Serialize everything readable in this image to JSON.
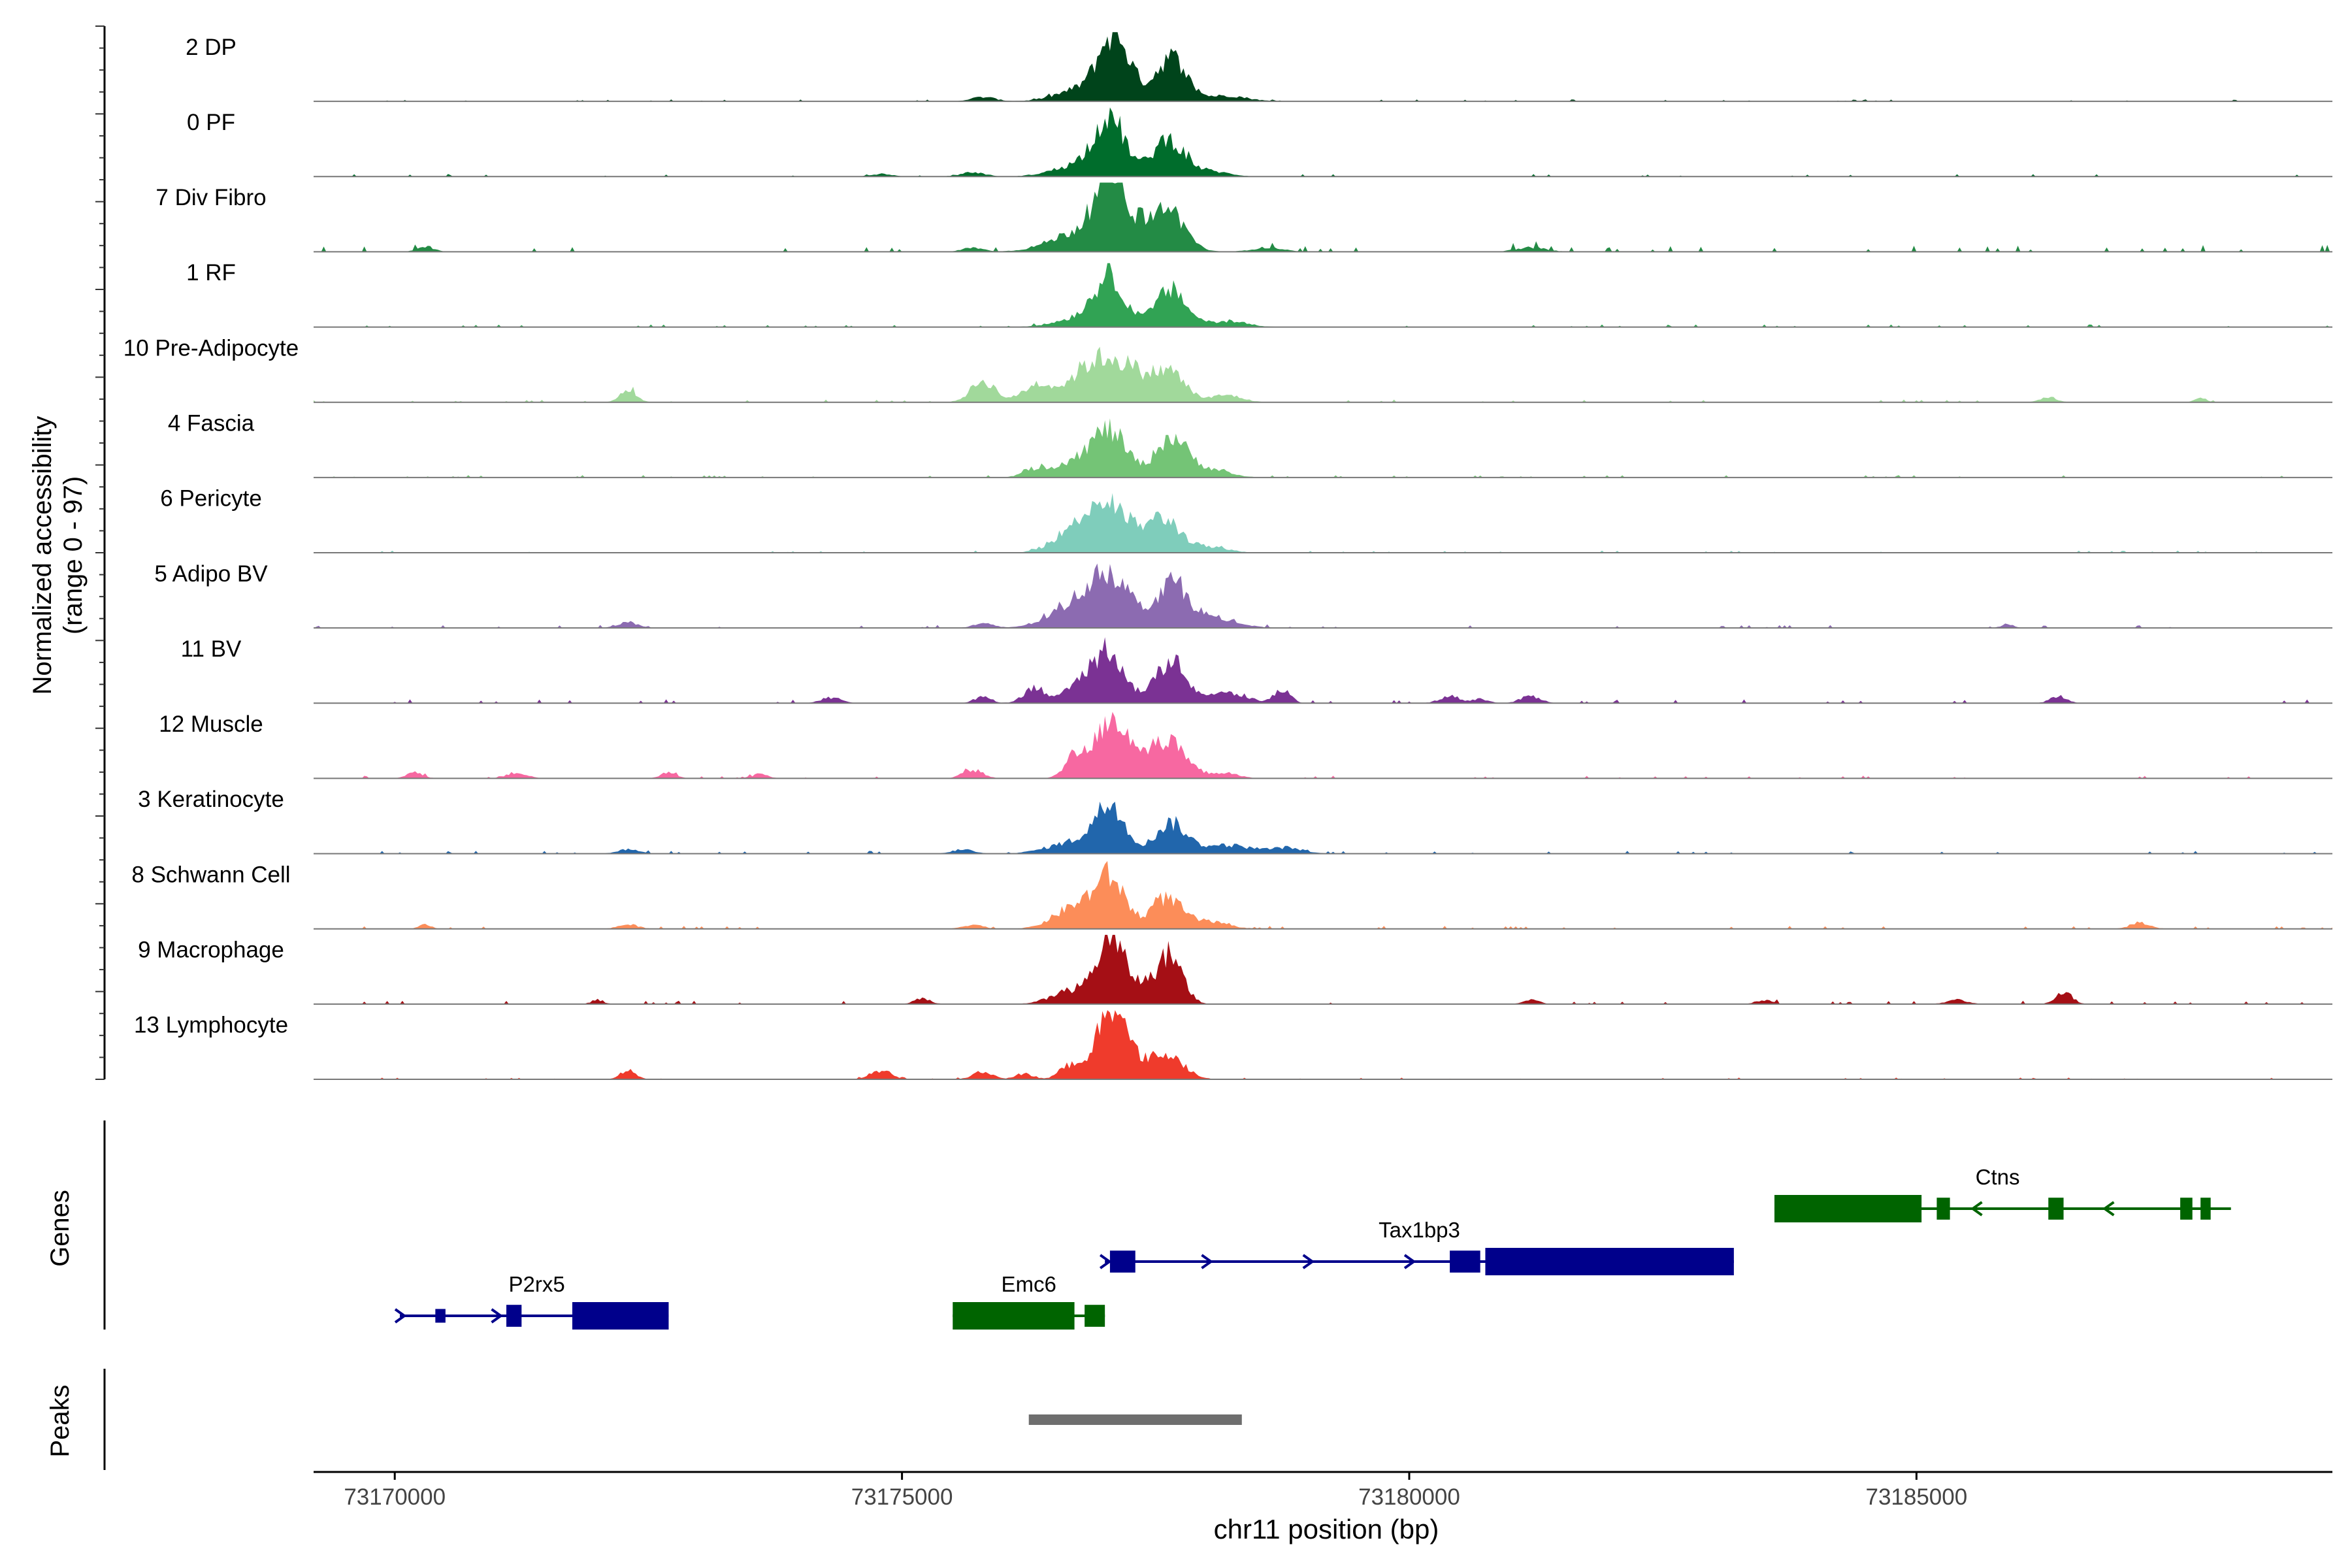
{
  "chart_data": {
    "type": "area",
    "title": "",
    "ylabel_line1": "Normalized accessibility",
    "ylabel_line2": "(range 0 - 97)",
    "xlabel": "chr11 position (bp)",
    "chromosome": "chr11",
    "xlim": [
      73169200,
      73189100
    ],
    "ylim": [
      0,
      97
    ],
    "x_ticks": [
      73170000,
      73175000,
      73180000,
      73185000
    ],
    "x_tick_labels": [
      "73170000",
      "73175000",
      "73180000",
      "73185000"
    ],
    "tracks": [
      {
        "name": "2 DP",
        "color": "#00441b",
        "noise": 0.9,
        "peaks": [
          [
            73177100,
            88,
            150
          ],
          [
            73177650,
            62,
            150
          ],
          [
            73176800,
            18,
            250
          ],
          [
            73178200,
            8,
            200
          ],
          [
            73175800,
            6,
            120
          ]
        ]
      },
      {
        "name": "0 PF",
        "color": "#006d2c",
        "noise": 1.2,
        "peaks": [
          [
            73177050,
            78,
            150
          ],
          [
            73177620,
            52,
            150
          ],
          [
            73176750,
            16,
            250
          ],
          [
            73178000,
            8,
            200
          ],
          [
            73175700,
            6,
            120
          ],
          [
            73174800,
            4,
            100
          ]
        ]
      },
      {
        "name": "7 Div Fibro",
        "color": "#238b45",
        "noise": 3.2,
        "peaks": [
          [
            73177050,
            92,
            130
          ],
          [
            73177650,
            42,
            150
          ],
          [
            73176800,
            30,
            300
          ],
          [
            73177380,
            30,
            250
          ],
          [
            73170300,
            8,
            80
          ],
          [
            73175700,
            6,
            100
          ],
          [
            73178600,
            6,
            150
          ],
          [
            73181200,
            6,
            150
          ]
        ]
      },
      {
        "name": "1 RF",
        "color": "#31a354",
        "noise": 1.2,
        "peaks": [
          [
            73177050,
            62,
            150
          ],
          [
            73177650,
            52,
            150
          ],
          [
            73176800,
            14,
            250
          ],
          [
            73178200,
            8,
            200
          ]
        ]
      },
      {
        "name": "10 Pre-Adipocyte",
        "color": "#a1d99b",
        "noise": 1.3,
        "peaks": [
          [
            73177000,
            48,
            200
          ],
          [
            73177650,
            38,
            150
          ],
          [
            73175800,
            30,
            120
          ],
          [
            73176350,
            26,
            150
          ],
          [
            73176750,
            22,
            150
          ],
          [
            73177300,
            30,
            200
          ],
          [
            73172300,
            18,
            80
          ],
          [
            73178200,
            10,
            150
          ],
          [
            73186300,
            8,
            80
          ],
          [
            73187800,
            6,
            60
          ]
        ]
      },
      {
        "name": "4 Fascia",
        "color": "#74c476",
        "noise": 1.1,
        "peaks": [
          [
            73177050,
            62,
            170
          ],
          [
            73177650,
            55,
            150
          ],
          [
            73176700,
            22,
            200
          ],
          [
            73176300,
            10,
            120
          ],
          [
            73178000,
            12,
            200
          ]
        ]
      },
      {
        "name": "6 Pericyte",
        "color": "#7fcdbb",
        "noise": 1.0,
        "peaks": [
          [
            73177000,
            55,
            180
          ],
          [
            73177600,
            40,
            150
          ],
          [
            73176700,
            30,
            200
          ],
          [
            73177300,
            22,
            200
          ],
          [
            73178000,
            8,
            200
          ]
        ]
      },
      {
        "name": "5 Adipo BV",
        "color": "#8c6bb1",
        "noise": 1.4,
        "peaks": [
          [
            73177050,
            70,
            200
          ],
          [
            73177650,
            58,
            150
          ],
          [
            73176700,
            28,
            250
          ],
          [
            73178000,
            16,
            250
          ],
          [
            73172300,
            8,
            100
          ],
          [
            73175800,
            6,
            100
          ],
          [
            73185900,
            6,
            60
          ]
        ]
      },
      {
        "name": "11 BV",
        "color": "#7b3294",
        "noise": 1.8,
        "peaks": [
          [
            73177050,
            65,
            150
          ],
          [
            73177650,
            58,
            150
          ],
          [
            73176300,
            22,
            100
          ],
          [
            73176800,
            24,
            200
          ],
          [
            73178200,
            14,
            200
          ],
          [
            73178750,
            18,
            80
          ],
          [
            73175800,
            10,
            80
          ],
          [
            73181200,
            10,
            100
          ],
          [
            73186400,
            10,
            80
          ],
          [
            73174300,
            8,
            100
          ],
          [
            73180400,
            10,
            100
          ],
          [
            73180700,
            6,
            80
          ]
        ]
      },
      {
        "name": "12 Muscle",
        "color": "#f768a1",
        "noise": 1.3,
        "peaks": [
          [
            73177050,
            78,
            150
          ],
          [
            73177400,
            32,
            200
          ],
          [
            73177680,
            35,
            150
          ],
          [
            73176700,
            30,
            100
          ],
          [
            73175700,
            12,
            100
          ],
          [
            73170200,
            8,
            80
          ],
          [
            73171200,
            8,
            100
          ],
          [
            73172700,
            8,
            80
          ],
          [
            73173600,
            6,
            80
          ],
          [
            73178150,
            8,
            150
          ]
        ]
      },
      {
        "name": "3 Keratinocyte",
        "color": "#2166ac",
        "noise": 1.3,
        "peaks": [
          [
            73177050,
            62,
            150
          ],
          [
            73177650,
            42,
            150
          ],
          [
            73176700,
            16,
            250
          ],
          [
            73178200,
            12,
            250
          ],
          [
            73178800,
            8,
            150
          ],
          [
            73172300,
            6,
            100
          ],
          [
            73175600,
            6,
            100
          ]
        ]
      },
      {
        "name": "8 Schwann Cell",
        "color": "#fc8d59",
        "noise": 1.4,
        "peaks": [
          [
            73177050,
            68,
            150
          ],
          [
            73177600,
            42,
            150
          ],
          [
            73176700,
            30,
            200
          ],
          [
            73178000,
            10,
            200
          ],
          [
            73170300,
            6,
            60
          ],
          [
            73172300,
            6,
            100
          ],
          [
            73175700,
            6,
            100
          ],
          [
            73187200,
            8,
            100
          ]
        ]
      },
      {
        "name": "9 Macrophage",
        "color": "#a50f15",
        "noise": 1.6,
        "peaks": [
          [
            73177050,
            80,
            130
          ],
          [
            73177650,
            62,
            120
          ],
          [
            73176700,
            20,
            200
          ],
          [
            73177350,
            25,
            200
          ],
          [
            73186450,
            18,
            80
          ],
          [
            73175200,
            8,
            80
          ],
          [
            73172000,
            6,
            60
          ],
          [
            73181200,
            6,
            80
          ],
          [
            73183500,
            6,
            80
          ],
          [
            73185400,
            6,
            100
          ]
        ]
      },
      {
        "name": "13 Lymphocyte",
        "color": "#ef3b2c",
        "noise": 0.8,
        "peaks": [
          [
            73177050,
            97,
            130
          ],
          [
            73177650,
            28,
            150
          ],
          [
            73176650,
            20,
            100
          ],
          [
            73177300,
            25,
            200
          ],
          [
            73172300,
            12,
            80
          ],
          [
            73174800,
            12,
            100
          ],
          [
            73175800,
            10,
            100
          ],
          [
            73176200,
            8,
            80
          ]
        ]
      }
    ],
    "genes_label": "Genes",
    "genes": [
      {
        "name": "P2rx5",
        "strand": "+",
        "color": "#00008b",
        "start": 73170050,
        "end": 73172700,
        "row": 2,
        "label_x": 73171400,
        "exons": [
          [
            73170400,
            73170500,
            0.5
          ],
          [
            73171100,
            73171250,
            0.8
          ],
          [
            73171750,
            73172700,
            1
          ]
        ],
        "arrows": [
          73170050,
          73171000
        ]
      },
      {
        "name": "Emc6",
        "strand": "-",
        "color": "#006400",
        "start": 73175500,
        "end": 73177000,
        "row": 2,
        "label_x": 73176250,
        "exons": [
          [
            73175500,
            73176700,
            1
          ],
          [
            73176800,
            73177000,
            0.8
          ]
        ],
        "arrows": []
      },
      {
        "name": "Tax1bp3",
        "strand": "+",
        "color": "#00008b",
        "start": 73177000,
        "end": 73183200,
        "row": 1,
        "label_x": 73180100,
        "exons": [
          [
            73177050,
            73177300,
            0.8
          ],
          [
            73180400,
            73180700,
            0.8
          ],
          [
            73180750,
            73183200,
            1
          ]
        ],
        "arrows": [
          73177000,
          73178000,
          73179000,
          73180000
        ]
      },
      {
        "name": "Ctns",
        "strand": "-",
        "color": "#006400",
        "start": 73183600,
        "end": 73188100,
        "row": 0,
        "label_x": 73185800,
        "exons": [
          [
            73183600,
            73185050,
            1
          ],
          [
            73185200,
            73185330,
            0.8
          ],
          [
            73186300,
            73186450,
            0.8
          ],
          [
            73187600,
            73187720,
            0.8
          ],
          [
            73187800,
            73187900,
            0.8
          ]
        ],
        "arrows": [
          73185600,
          73186900
        ]
      }
    ],
    "peaks_label": "Peaks",
    "peak_regions": [
      [
        73176250,
        73178350
      ]
    ]
  }
}
